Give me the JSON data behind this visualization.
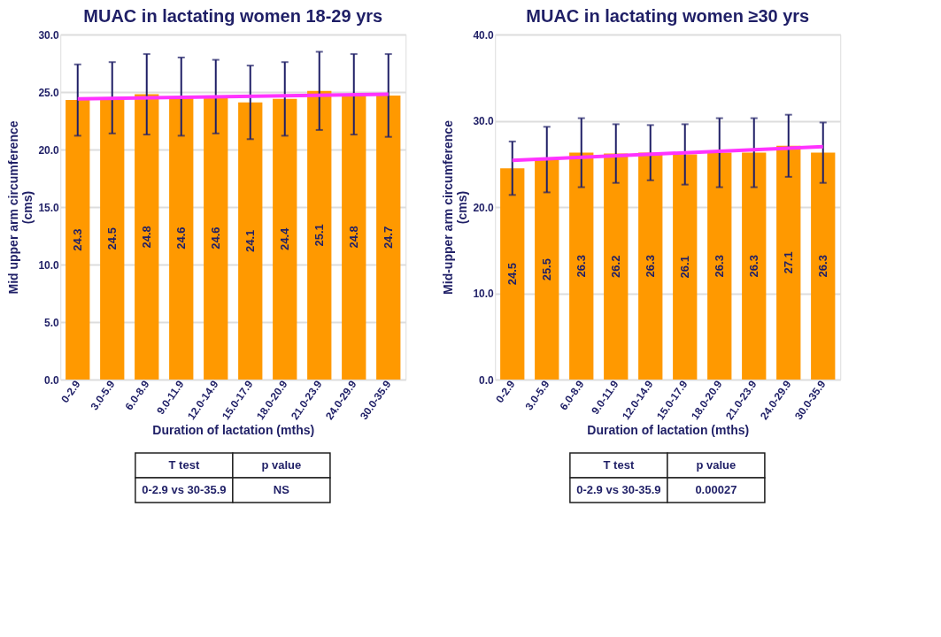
{
  "chart_data": [
    {
      "type": "bar",
      "title": "MUAC in lactating women 18-29 yrs",
      "xlabel": "Duration of lactation (mths)",
      "ylabel": "Mid upper arm circumference\n(cms)",
      "categories": [
        "0-2.9",
        "3.0-5.9",
        "6.0-8.9",
        "9.0-11.9",
        "12.0-14.9",
        "15.0-17.9",
        "18.0-20.9",
        "21.0-23.9",
        "24.0-29.9",
        "30.0-35.9"
      ],
      "series": [
        {
          "color": "#ff9900",
          "values": [
            24.3,
            24.5,
            24.8,
            24.6,
            24.6,
            24.1,
            24.4,
            25.1,
            24.8,
            24.7
          ],
          "errors": [
            3.1,
            3.1,
            3.5,
            3.4,
            3.2,
            3.2,
            3.2,
            3.4,
            3.5,
            3.6
          ],
          "value_labels": [
            "24.3",
            "24.5",
            "24.8",
            "24.6",
            "24.6",
            "24.1",
            "24.4",
            "25.1",
            "24.8",
            "24.7"
          ]
        },
        {
          "type": "line",
          "color": "#ff33ff",
          "x": [
            "0-2.9",
            "30.0-35.9"
          ],
          "values": [
            24.4,
            24.8
          ]
        }
      ],
      "ylim": [
        0,
        30
      ],
      "yticks": [
        {
          "value": 0,
          "label": "0.0"
        },
        {
          "value": 5,
          "label": "5.0"
        },
        {
          "value": 10,
          "label": "10.0"
        },
        {
          "value": 15,
          "label": "15.0"
        },
        {
          "value": 20,
          "label": "20.0"
        },
        {
          "value": 25,
          "label": "25.0"
        },
        {
          "value": 30,
          "label": "30.0"
        }
      ],
      "grid": "y",
      "annotations": [
        "T test",
        "p value",
        "0-2.9 vs 30-35.9",
        "NS"
      ]
    },
    {
      "type": "bar",
      "title": "MUAC in lactating women ≥30 yrs",
      "xlabel": "Duration of lactation (mths)",
      "ylabel": "Mid-upper arm circumference\n(cms)",
      "categories": [
        "0-2.9",
        "3.0-5.9",
        "6.0-8.9",
        "9.0-11.9",
        "12.0-14.9",
        "15.0-17.9",
        "18.0-20.9",
        "21.0-23.9",
        "24.0-29.9",
        "30.0-35.9"
      ],
      "series": [
        {
          "color": "#ff9900",
          "values": [
            24.5,
            25.5,
            26.3,
            26.2,
            26.3,
            26.1,
            26.3,
            26.3,
            27.1,
            26.3
          ],
          "errors": [
            3.1,
            3.8,
            4.0,
            3.4,
            3.2,
            3.5,
            4.0,
            4.0,
            3.6,
            3.5
          ],
          "value_labels": [
            "24.5",
            "25.5",
            "26.3",
            "26.2",
            "26.3",
            "26.1",
            "26.3",
            "26.3",
            "27.1",
            "26.3"
          ]
        },
        {
          "type": "line",
          "color": "#ff33ff",
          "x": [
            "0-2.9",
            "30.0-35.9"
          ],
          "values": [
            25.4,
            27.0
          ]
        }
      ],
      "ylim": [
        0,
        40
      ],
      "yticks": [
        {
          "value": 0,
          "label": "0.0"
        },
        {
          "value": 10,
          "label": "10.0"
        },
        {
          "value": 20,
          "label": "20.0"
        },
        {
          "value": 30,
          "label": "30.0"
        },
        {
          "value": 40,
          "label": "40.0"
        }
      ],
      "grid": "y",
      "annotations": [
        "T test",
        "p value",
        "0-2.9 vs 30-35.9",
        "0.00027"
      ]
    }
  ]
}
